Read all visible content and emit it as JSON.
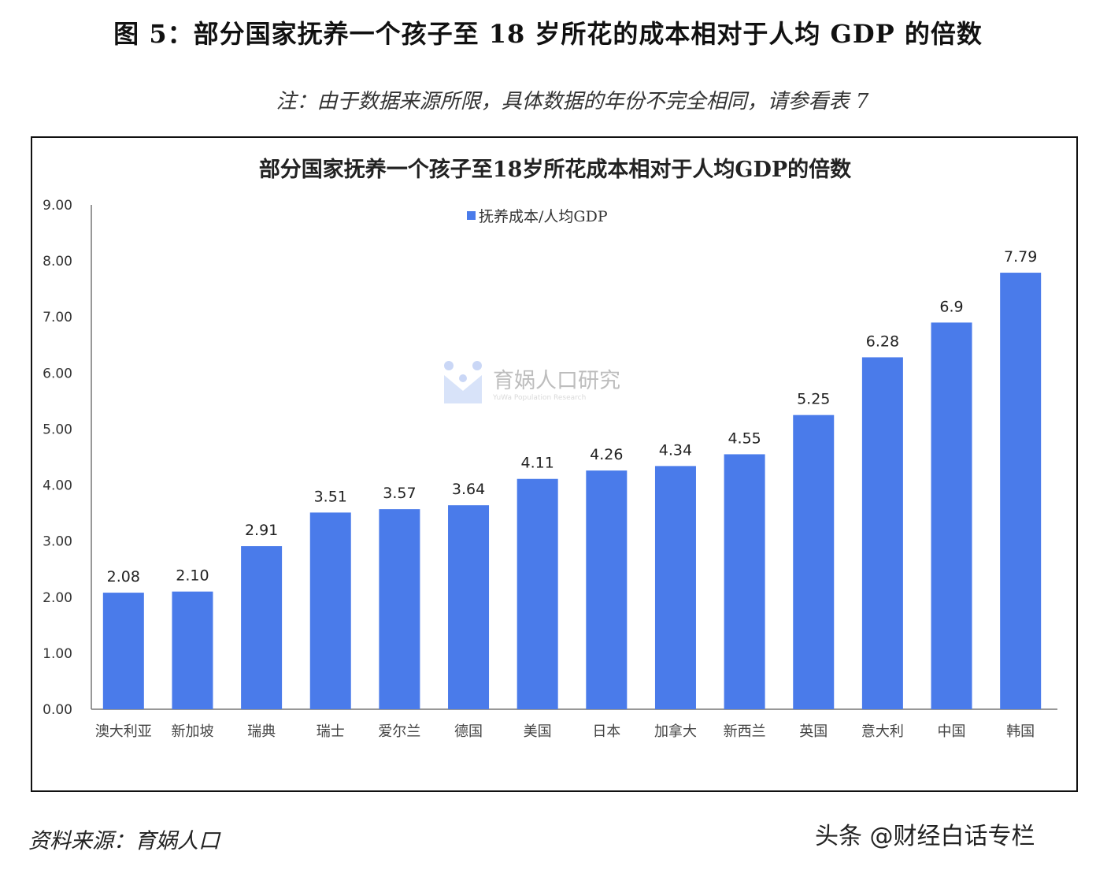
{
  "figure_title": "图 5：部分国家抚养一个孩子至 18 岁所花的成本相对于人均 GDP 的倍数",
  "note": "注：由于数据来源所限，具体数据的年份不完全相同，请参看表 7",
  "source": "资料来源：育娲人口",
  "credit": "头条 @财经白话专栏",
  "watermark": {
    "name": "育娲人口研究",
    "subtitle": "YuWa Population Research"
  },
  "chart_data": {
    "type": "bar",
    "title": "部分国家抚养一个孩子至18岁所花成本相对于人均GDP的倍数",
    "categories": [
      "澳大利亚",
      "新加坡",
      "瑞典",
      "瑞士",
      "爱尔兰",
      "德国",
      "美国",
      "日本",
      "加拿大",
      "新西兰",
      "英国",
      "意大利",
      "中国",
      "韩国"
    ],
    "series": [
      {
        "name": "抚养成本/人均GDP",
        "values": [
          2.08,
          2.1,
          2.91,
          3.51,
          3.57,
          3.64,
          4.11,
          4.26,
          4.34,
          4.55,
          5.25,
          6.28,
          6.9,
          7.79
        ],
        "labels": [
          "2.08",
          "2.10",
          "2.91",
          "3.51",
          "3.57",
          "3.64",
          "4.11",
          "4.26",
          "4.34",
          "4.55",
          "5.25",
          "6.28",
          "6.9",
          "7.79"
        ]
      }
    ],
    "ylim": [
      0,
      9
    ],
    "yticks": [
      "0.00",
      "1.00",
      "2.00",
      "3.00",
      "4.00",
      "5.00",
      "6.00",
      "7.00",
      "8.00",
      "9.00"
    ],
    "grid": false,
    "legend_position": "top-center",
    "bar_color": "#4a7bea"
  }
}
